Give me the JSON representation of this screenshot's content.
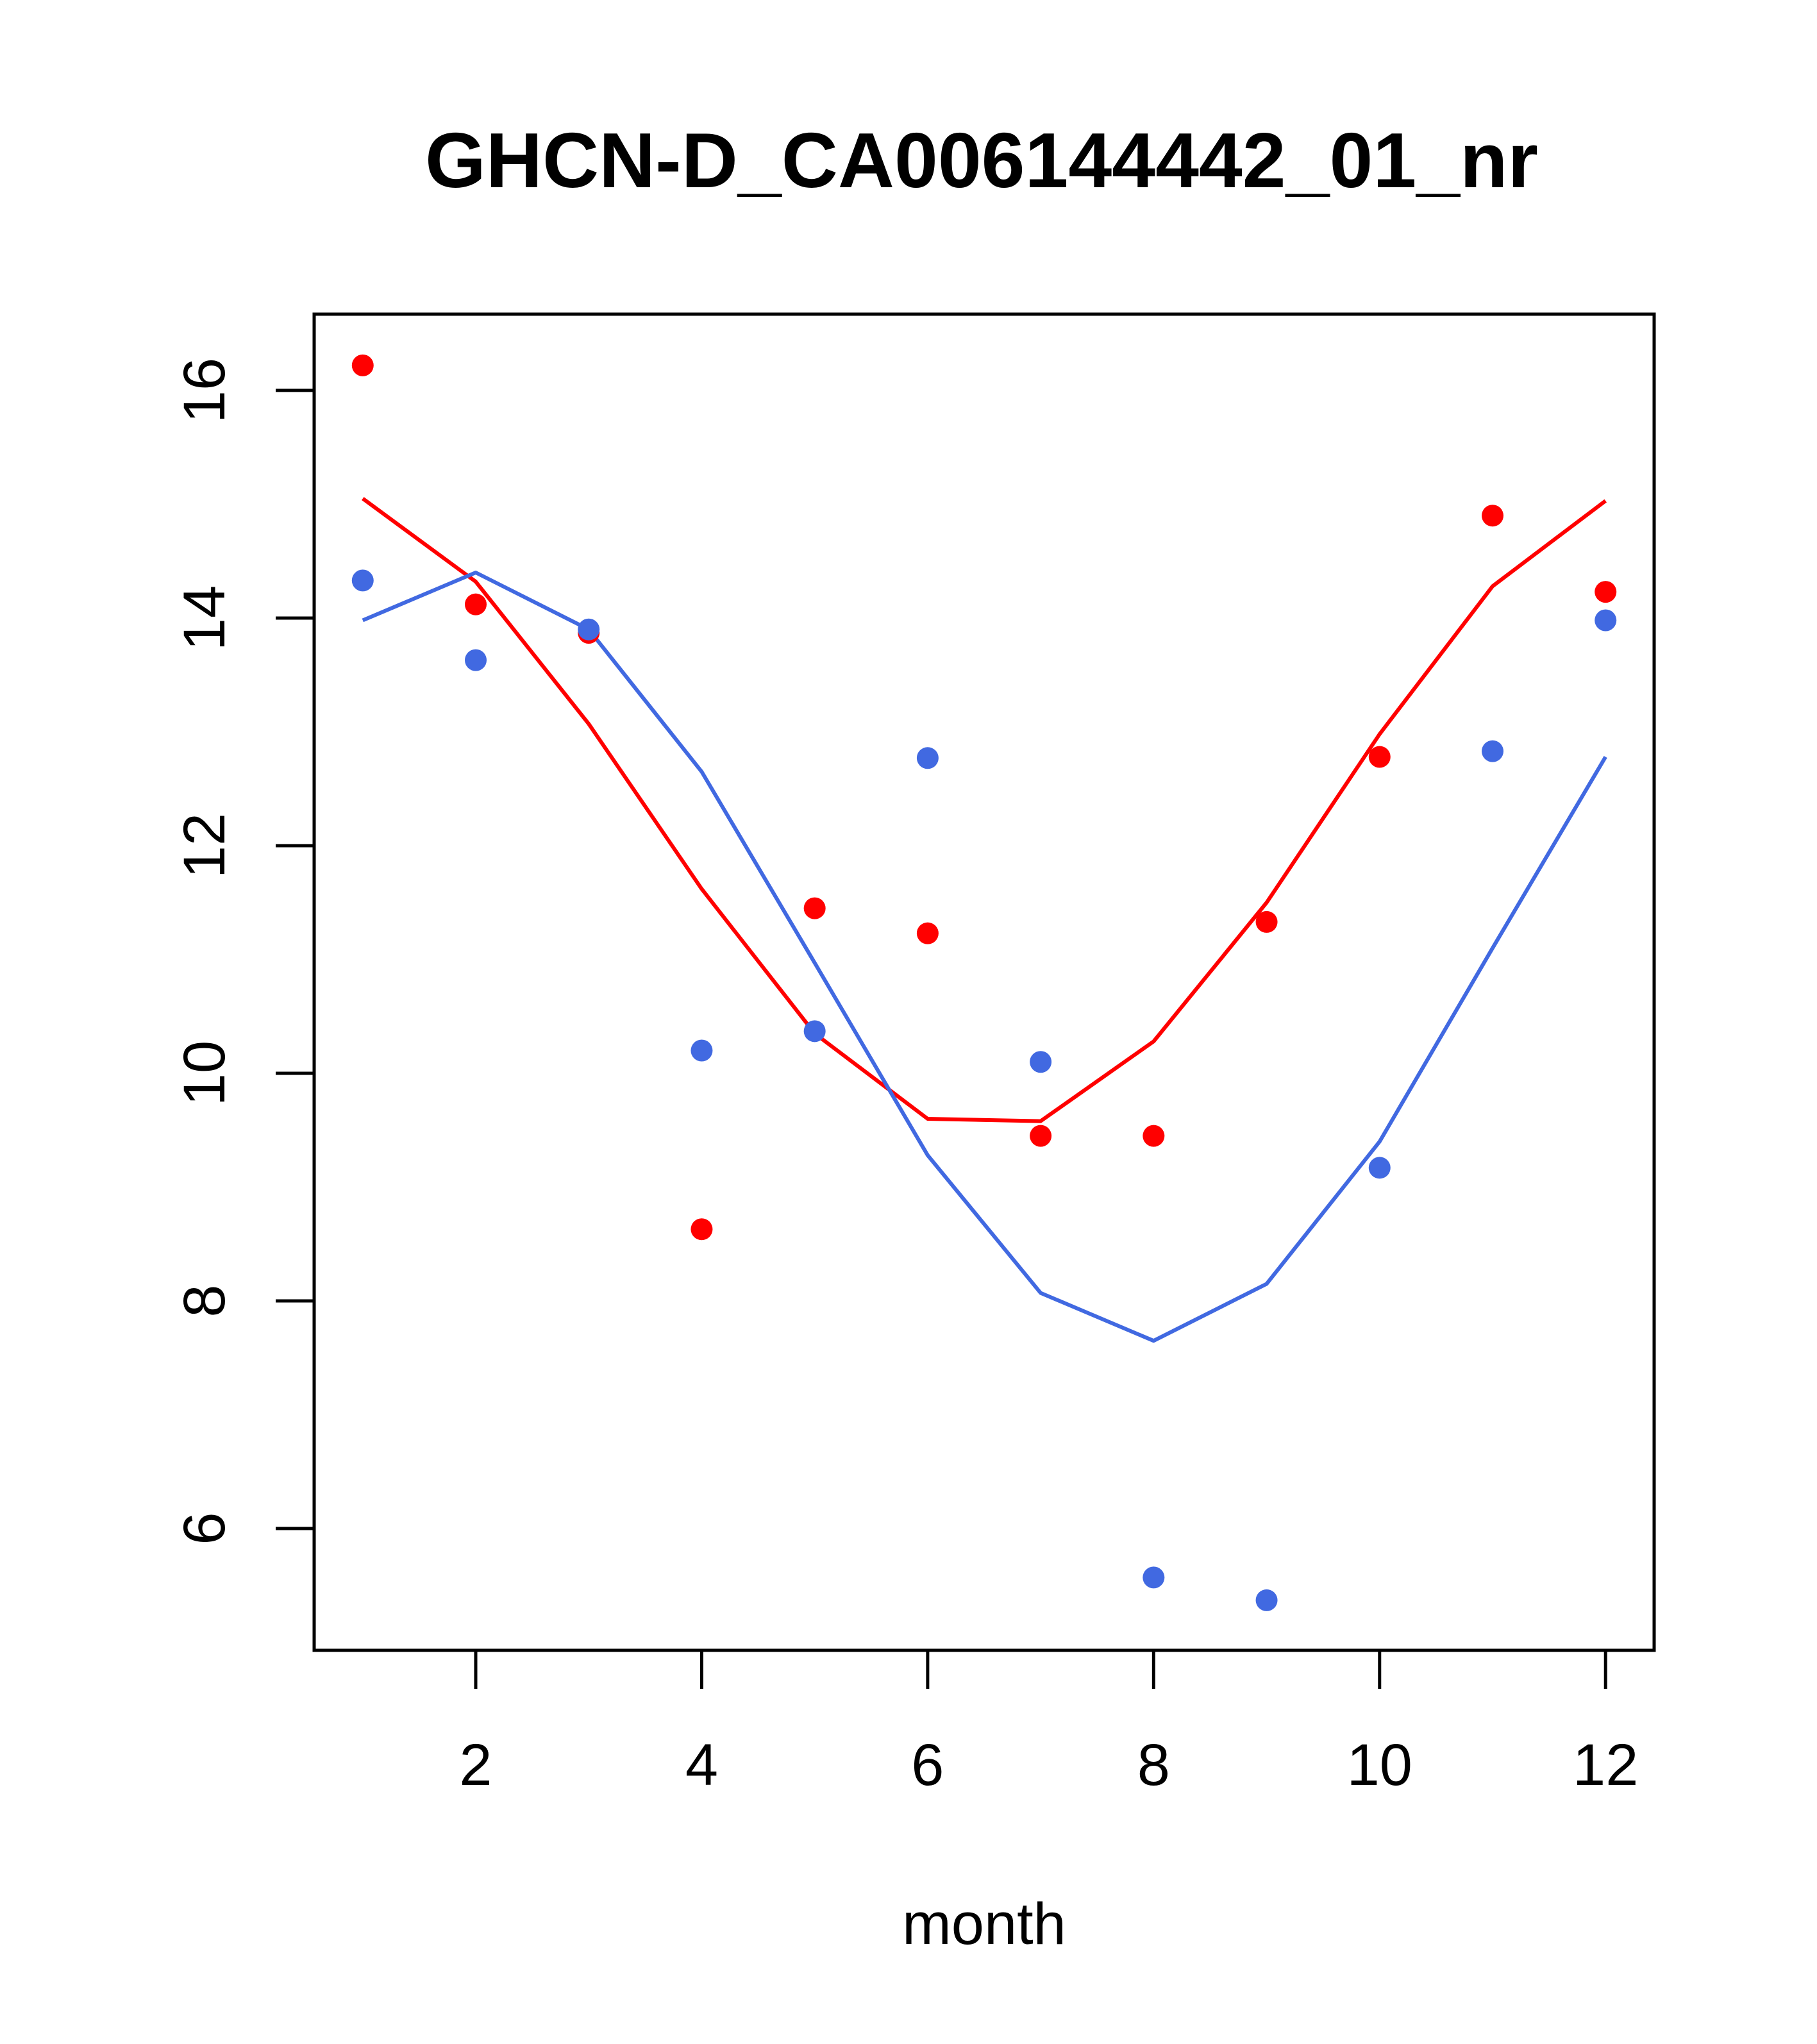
{
  "chart_data": {
    "type": "scatter",
    "title": "GHCN-D_CA006144442_01_nr",
    "xlabel": "month",
    "ylabel": "",
    "xlim": [
      0.57,
      12.43
    ],
    "ylim": [
      4.93,
      16.67
    ],
    "x_ticks": [
      2,
      4,
      6,
      8,
      10,
      12
    ],
    "y_ticks": [
      6,
      8,
      10,
      12,
      14,
      16
    ],
    "grid": false,
    "legend": "none",
    "series": [
      {
        "color": "#ff0000",
        "points_x": [
          1,
          2,
          3,
          4,
          5,
          6,
          7,
          8,
          9,
          10,
          11,
          12
        ],
        "points_y": [
          16.22,
          14.12,
          13.87,
          8.63,
          11.45,
          11.23,
          9.45,
          9.45,
          11.33,
          12.78,
          14.9,
          14.23
        ],
        "line_x": [
          1,
          2,
          3,
          4,
          5,
          6,
          7,
          8,
          9,
          10,
          11,
          12
        ],
        "line_y": [
          15.05,
          14.32,
          13.07,
          11.62,
          10.35,
          9.6,
          9.58,
          10.28,
          11.5,
          12.98,
          14.28,
          15.03
        ]
      },
      {
        "color": "#4169e1",
        "points_x": [
          1,
          2,
          3,
          4,
          5,
          6,
          7,
          8,
          9,
          10,
          11,
          12
        ],
        "points_y": [
          14.33,
          13.63,
          13.9,
          10.2,
          10.37,
          12.77,
          10.1,
          5.57,
          5.37,
          9.17,
          12.83,
          13.98
        ],
        "line_x": [
          1,
          2,
          3,
          4,
          5,
          6,
          7,
          8,
          9,
          10,
          11,
          12
        ],
        "line_y": [
          13.98,
          14.4,
          13.9,
          12.65,
          10.97,
          9.28,
          8.07,
          7.65,
          8.15,
          9.4,
          11.1,
          12.78
        ]
      }
    ]
  }
}
